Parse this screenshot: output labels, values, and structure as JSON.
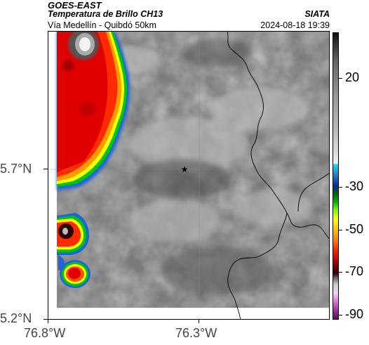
{
  "header": {
    "satellite": "GOES-EAST",
    "product": "Temperatura de Brillo CH13",
    "region": "Vía Medellín - Quibdó 50km",
    "org": "SIATA",
    "datetime": "2024-08-18 19:39"
  },
  "axes": {
    "y_labels": [
      "5.7°N",
      "5.2°N"
    ],
    "x_labels": [
      "76.8°W",
      "76.3°W"
    ]
  },
  "colorbar": {
    "labels": [
      "20",
      "-30",
      "-50",
      "-70",
      "-90"
    ]
  },
  "colors": {
    "cold_core": "#b00000",
    "warm_band_1": "#ffff00",
    "warm_band_2": "#00c800",
    "edge_blue": "#1e64dc"
  },
  "marker": {
    "icon": "star-icon"
  }
}
